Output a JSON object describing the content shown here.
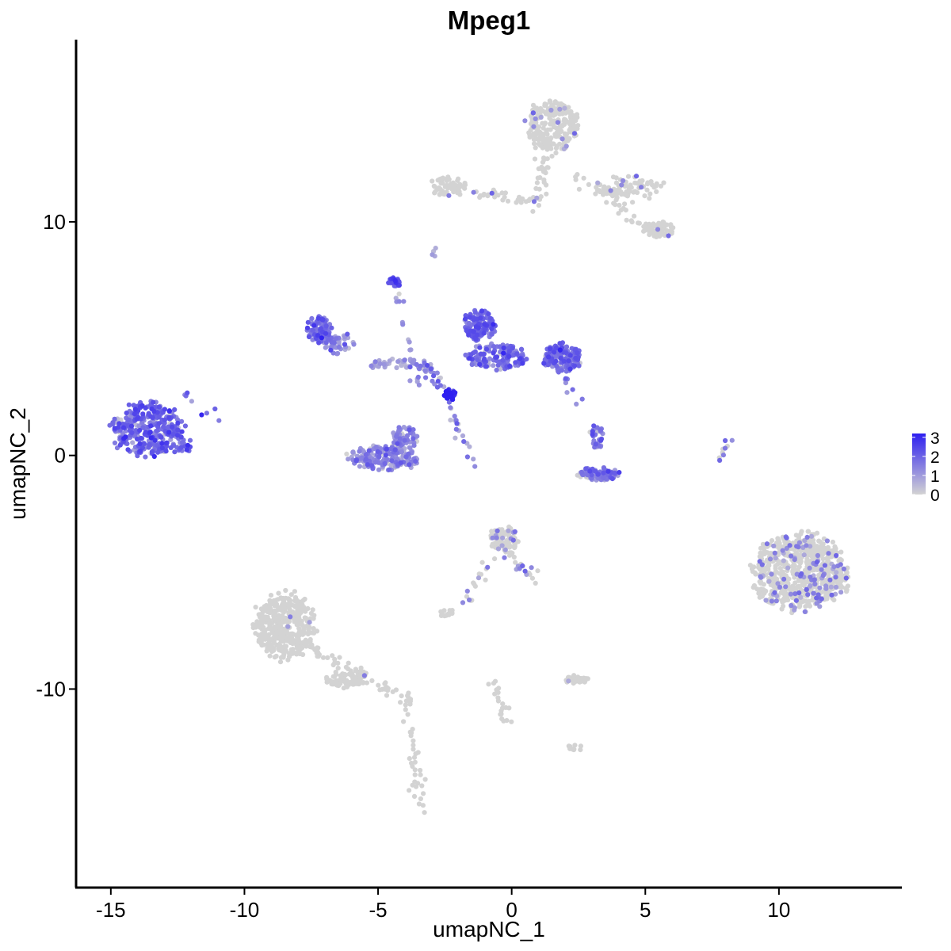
{
  "chart_data": {
    "type": "scatter",
    "title": "Mpeg1",
    "xlabel": "umapNC_1",
    "ylabel": "umapNC_2",
    "xlim": [
      -16.3,
      14.6
    ],
    "ylim": [
      -18.5,
      17.8
    ],
    "xticks": [
      -15,
      -10,
      -5,
      0,
      5,
      10
    ],
    "xtick_labels": [
      "-15",
      "-10",
      "-5",
      "0",
      "5",
      "10"
    ],
    "yticks": [
      -10,
      0,
      10
    ],
    "ytick_labels": [
      "-10",
      "0",
      "10"
    ],
    "grid": false,
    "color_scale": {
      "low": "#d3d3d3",
      "high": "#2e1ff0",
      "breaks": [
        0,
        1,
        2,
        3
      ],
      "break_labels": [
        "0",
        "1",
        "2",
        "3"
      ],
      "max": 3.2,
      "legend_position": "right"
    },
    "clusters": [
      {
        "cx": -13.6,
        "cy": 1.1,
        "rx": 1.5,
        "ry": 1.3,
        "n": 330,
        "expr": 1.9
      },
      {
        "cx": -12.2,
        "cy": 0.4,
        "rx": 0.35,
        "ry": 0.3,
        "n": 14,
        "expr": 2.0
      },
      {
        "cx": -7.2,
        "cy": 5.4,
        "rx": 0.5,
        "ry": 0.7,
        "n": 90,
        "expr": 1.7
      },
      {
        "cx": -6.5,
        "cy": 4.8,
        "rx": 0.7,
        "ry": 0.5,
        "n": 50,
        "expr": 1.4
      },
      {
        "cx": -4.8,
        "cy": -0.1,
        "rx": 1.5,
        "ry": 0.6,
        "n": 190,
        "expr": 1.2
      },
      {
        "cx": -4.0,
        "cy": 0.7,
        "rx": 0.6,
        "ry": 0.6,
        "n": 60,
        "expr": 1.3
      },
      {
        "cx": -4.2,
        "cy": 3.9,
        "rx": 1.2,
        "ry": 0.3,
        "n": 50,
        "expr": 0.8
      },
      {
        "cx": -4.4,
        "cy": 7.4,
        "rx": 0.25,
        "ry": 0.25,
        "n": 25,
        "expr": 2.3
      },
      {
        "cx": -1.2,
        "cy": 5.6,
        "rx": 0.7,
        "ry": 0.7,
        "n": 160,
        "expr": 1.9
      },
      {
        "cx": -0.6,
        "cy": 4.2,
        "rx": 1.3,
        "ry": 0.6,
        "n": 140,
        "expr": 1.8
      },
      {
        "cx": 1.9,
        "cy": 4.2,
        "rx": 0.8,
        "ry": 0.7,
        "n": 170,
        "expr": 1.8
      },
      {
        "cx": -2.3,
        "cy": 2.6,
        "rx": 0.25,
        "ry": 0.25,
        "n": 40,
        "expr": 3.0
      },
      {
        "cx": 3.3,
        "cy": -0.8,
        "rx": 0.9,
        "ry": 0.3,
        "n": 90,
        "expr": 1.7
      },
      {
        "cx": 3.2,
        "cy": 0.8,
        "rx": 0.3,
        "ry": 0.6,
        "n": 30,
        "expr": 1.6
      },
      {
        "cx": 10.8,
        "cy": -5.0,
        "rx": 2.0,
        "ry": 1.8,
        "n": 700,
        "expr": 0.12
      },
      {
        "cx": 1.5,
        "cy": 14.1,
        "rx": 1.1,
        "ry": 1.2,
        "n": 260,
        "expr": 0.03
      },
      {
        "cx": 4.4,
        "cy": 11.4,
        "rx": 1.5,
        "ry": 0.6,
        "n": 80,
        "expr": 0.05
      },
      {
        "cx": 5.5,
        "cy": 9.7,
        "rx": 0.6,
        "ry": 0.4,
        "n": 70,
        "expr": 0.02
      },
      {
        "cx": -2.4,
        "cy": 11.5,
        "rx": 0.8,
        "ry": 0.5,
        "n": 60,
        "expr": 0.03
      },
      {
        "cx": -0.3,
        "cy": -3.6,
        "rx": 0.6,
        "ry": 0.6,
        "n": 90,
        "expr": 0.12
      },
      {
        "cx": -8.5,
        "cy": -7.3,
        "rx": 1.3,
        "ry": 1.6,
        "n": 380,
        "expr": 0.01
      },
      {
        "cx": -6.2,
        "cy": -9.6,
        "rx": 0.9,
        "ry": 0.4,
        "n": 70,
        "expr": 0.01
      },
      {
        "cx": 2.4,
        "cy": -9.6,
        "rx": 0.5,
        "ry": 0.2,
        "n": 45,
        "expr": 0.05
      },
      {
        "cx": -2.4,
        "cy": -6.8,
        "rx": 0.4,
        "ry": 0.2,
        "n": 20,
        "expr": 0.0
      },
      {
        "cx": 2.4,
        "cy": -12.5,
        "rx": 0.3,
        "ry": 0.15,
        "n": 12,
        "expr": 0.0
      }
    ],
    "trails": [
      {
        "x1": -8.0,
        "y1": -8.0,
        "x2": -3.9,
        "y2": -10.4,
        "n": 60,
        "expr": 0.02
      },
      {
        "x1": -3.9,
        "y1": -10.4,
        "x2": -3.4,
        "y2": -15.3,
        "n": 40,
        "expr": 0.02
      },
      {
        "x1": 1.3,
        "y1": 12.8,
        "x2": 1.0,
        "y2": 10.5,
        "n": 30,
        "expr": 0.02
      },
      {
        "x1": -1.5,
        "y1": 11.2,
        "x2": 1.0,
        "y2": 11.0,
        "n": 30,
        "expr": 0.05
      },
      {
        "x1": 2.3,
        "y1": 12.0,
        "x2": 5.4,
        "y2": 9.5,
        "n": 35,
        "expr": 0.02
      },
      {
        "x1": -4.3,
        "y1": 7.0,
        "x2": -3.5,
        "y2": 2.8,
        "n": 18,
        "expr": 1.2
      },
      {
        "x1": -2.4,
        "y1": 2.2,
        "x2": -1.4,
        "y2": -0.6,
        "n": 18,
        "expr": 0.9
      },
      {
        "x1": -3.3,
        "y1": 4.0,
        "x2": -2.4,
        "y2": 2.6,
        "n": 25,
        "expr": 1.4
      },
      {
        "x1": -0.3,
        "y1": -4.0,
        "x2": 1.0,
        "y2": -5.5,
        "n": 25,
        "expr": 0.15
      },
      {
        "x1": -0.6,
        "y1": -4.0,
        "x2": -1.7,
        "y2": -6.2,
        "n": 18,
        "expr": 0.3
      },
      {
        "x1": 8.0,
        "y1": 0.5,
        "x2": 7.8,
        "y2": -0.3,
        "n": 10,
        "expr": 0.3
      },
      {
        "x1": -0.8,
        "y1": -9.5,
        "x2": -0.1,
        "y2": -11.6,
        "n": 20,
        "expr": 0.0
      },
      {
        "x1": -12.3,
        "y1": 2.8,
        "x2": -11.0,
        "y2": 1.5,
        "n": 8,
        "expr": 1.6
      },
      {
        "x1": -3.0,
        "y1": 8.8,
        "x2": -2.9,
        "y2": 8.4,
        "n": 4,
        "expr": 1.0
      },
      {
        "x1": 1.9,
        "y1": 3.6,
        "x2": 2.6,
        "y2": 2.2,
        "n": 10,
        "expr": 1.2
      }
    ]
  }
}
